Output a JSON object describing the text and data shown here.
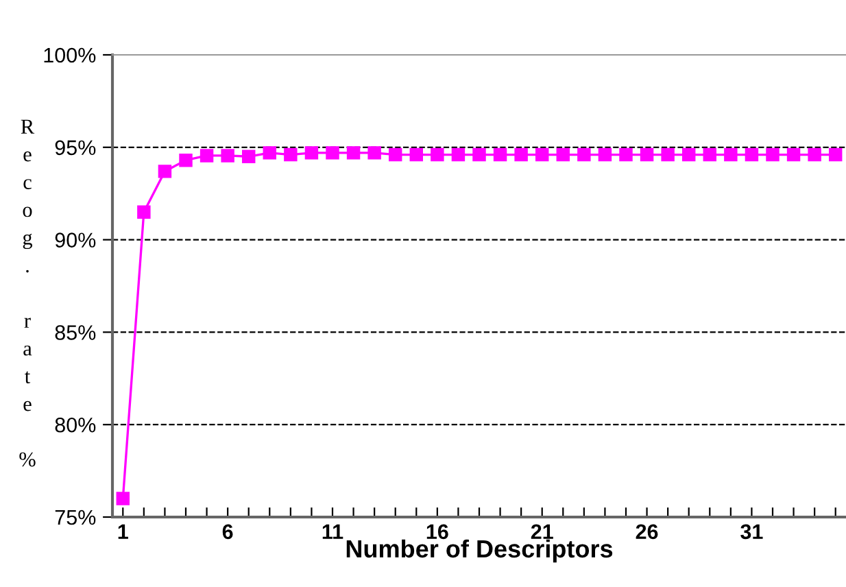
{
  "chart_data": {
    "type": "line",
    "xlabel": "Number of Descriptors",
    "ylabel": "Recog. rate %",
    "categories": [
      "1",
      null,
      null,
      null,
      null,
      "6",
      null,
      null,
      null,
      null,
      "11",
      null,
      null,
      null,
      null,
      "16",
      null,
      null,
      null,
      null,
      "21",
      null,
      null,
      null,
      null,
      "26",
      null,
      null,
      null,
      null,
      "31",
      null,
      null,
      null,
      null
    ],
    "series": [
      {
        "color": "#ff00ff",
        "values": [
          76.0,
          91.5,
          93.7,
          94.3,
          94.55,
          94.55,
          94.5,
          94.7,
          94.6,
          94.7,
          94.7,
          94.7,
          94.7,
          94.6,
          94.6,
          94.6,
          94.6,
          94.6,
          94.6,
          94.6,
          94.6,
          94.6,
          94.6,
          94.6,
          94.6,
          94.6,
          94.6,
          94.6,
          94.6,
          94.6,
          94.6,
          94.6,
          94.6,
          94.6,
          94.6
        ]
      }
    ],
    "ylim": [
      75,
      100
    ],
    "yticks": [
      {
        "value": 75,
        "label": "75%"
      },
      {
        "value": 80,
        "label": "80%"
      },
      {
        "value": 85,
        "label": "85%"
      },
      {
        "value": 90,
        "label": "90%"
      },
      {
        "value": 95,
        "label": "95%"
      },
      {
        "value": 100,
        "label": "100%"
      }
    ],
    "grid": "y",
    "marker": "square",
    "line_style": "solid"
  }
}
